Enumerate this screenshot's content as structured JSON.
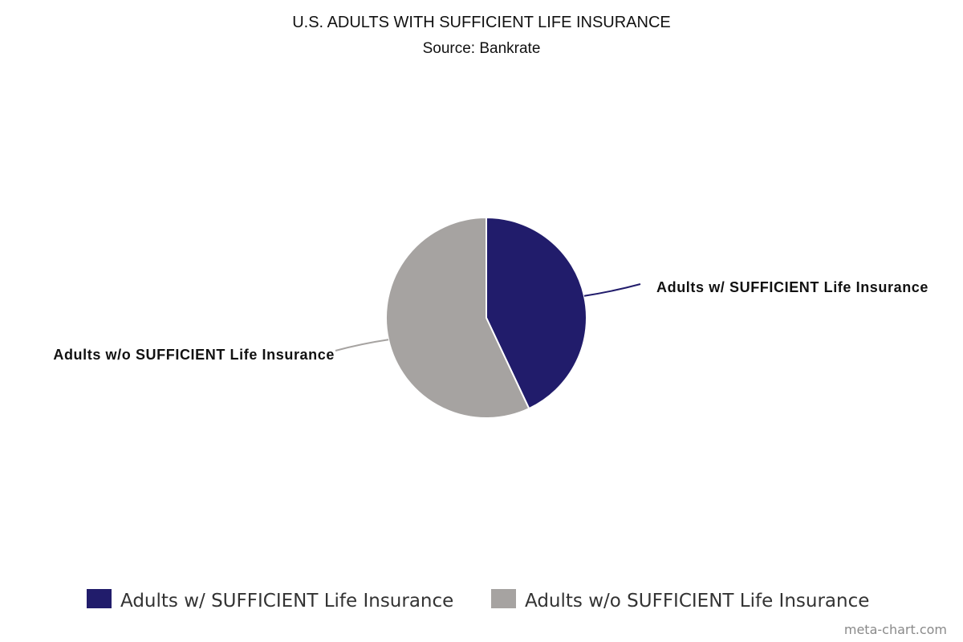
{
  "chart_data": {
    "type": "pie",
    "title": "U.S. ADULTS WITH SUFFICIENT LIFE INSURANCE",
    "subtitle": "Source: Bankrate",
    "categories": [
      "Adults w/ SUFFICIENT Life Insurance",
      "Adults w/o SUFFICIENT Life Insurance"
    ],
    "values": [
      43,
      57
    ],
    "colors": [
      "#211C6B",
      "#A6A3A1"
    ],
    "legend_position": "bottom",
    "labels_position": "outside-with-leader-lines"
  },
  "legend": {
    "items": [
      {
        "label": "Adults w/ SUFFICIENT Life Insurance",
        "color": "#211C6B"
      },
      {
        "label": "Adults w/o SUFFICIENT Life Insurance",
        "color": "#A6A3A1"
      }
    ]
  },
  "watermark": "meta-chart.com"
}
